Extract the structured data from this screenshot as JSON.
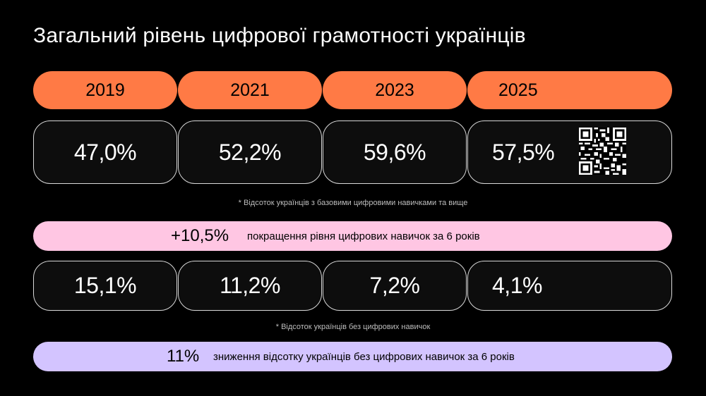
{
  "title": "Загальний рівень цифрової грамотності українців",
  "years": [
    "2019",
    "2021",
    "2023",
    "2025"
  ],
  "basic_skills": {
    "values": [
      "47,0%",
      "52,2%",
      "59,6%",
      "57,5%"
    ],
    "note": "* Відсоток українців з базовими цифровими навичками та вище"
  },
  "improvement": {
    "value": "+10,5%",
    "text": "покращення рівня цифрових навичок за 6 років"
  },
  "no_skills": {
    "values": [
      "15,1%",
      "11,2%",
      "7,2%",
      "4,1%"
    ],
    "note": "* Відсоток українців без цифрових навичок"
  },
  "reduction": {
    "value": "11%",
    "text": "зниження відсотку українців без цифрових навичок за 6 років"
  },
  "colors": {
    "background": "#000000",
    "year_tab": "#ff7a45",
    "improvement_banner": "#ffc6e3",
    "reduction_banner": "#d3c4ff"
  },
  "icons": [
    "qr-code-icon"
  ]
}
